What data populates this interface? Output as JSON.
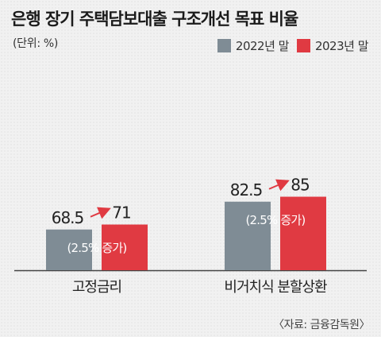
{
  "title": "은행 장기 주택담보대출 구조개선 목표 비율",
  "unit": "(단위: %)",
  "source": "〈자료: 금융감독원〉",
  "colors": {
    "series_2022": "#7f8c95",
    "series_2023": "#e03a42",
    "arrow": "#e03a42"
  },
  "chart_data": {
    "type": "bar",
    "categories": [
      "고정금리",
      "비거치식 분할상환"
    ],
    "series": [
      {
        "name": "2022년 말",
        "values": [
          68.5,
          82.5
        ]
      },
      {
        "name": "2023년 말",
        "values": [
          71,
          85
        ]
      }
    ],
    "value_labels": [
      [
        "68.5",
        "82.5"
      ],
      [
        "71",
        "85"
      ]
    ],
    "annotations": [
      "(2.5% 증가)",
      "(2.5% 증가)"
    ],
    "legend": "top-right",
    "grid": false
  }
}
